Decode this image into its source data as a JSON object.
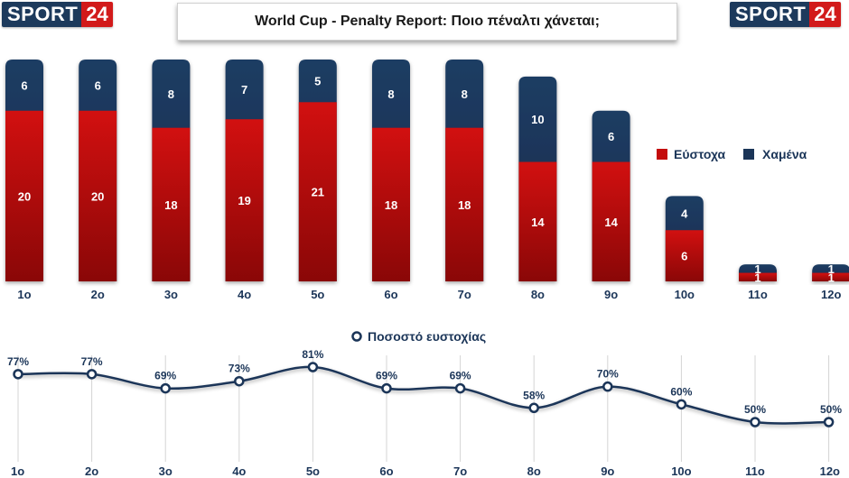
{
  "branding": {
    "logo_word": "SPORT",
    "logo_number": "24"
  },
  "colors": {
    "scored": "#c40c0c",
    "missed": "#1b3558",
    "line": "#1b3558",
    "grid": "#d4d4d4"
  },
  "chart_data": [
    {
      "type": "bar",
      "stacked": true,
      "title": "World Cup - Penalty Report: Ποιο πέναλτι χάνεται;",
      "categories": [
        "1ο",
        "2ο",
        "3ο",
        "4ο",
        "5ο",
        "6ο",
        "7ο",
        "8ο",
        "9ο",
        "10ο",
        "11ο",
        "12ο"
      ],
      "series": [
        {
          "name": "Εύστοχα",
          "values": [
            20,
            20,
            18,
            19,
            21,
            18,
            18,
            14,
            14,
            6,
            1,
            1
          ]
        },
        {
          "name": "Χαμένα",
          "values": [
            6,
            6,
            8,
            7,
            5,
            8,
            8,
            10,
            6,
            4,
            1,
            1
          ]
        }
      ],
      "legend": "right",
      "ylim": [
        0,
        26
      ]
    },
    {
      "type": "line",
      "title": "Ποσοστό ευστοχίας",
      "categories": [
        "1ο",
        "2ο",
        "3ο",
        "4ο",
        "5ο",
        "6ο",
        "7ο",
        "8ο",
        "9ο",
        "10ο",
        "11ο",
        "12ο"
      ],
      "values": [
        77,
        77,
        69,
        73,
        81,
        69,
        69,
        58,
        70,
        60,
        50,
        50
      ],
      "value_suffix": "%",
      "grid": "vertical",
      "ylim": [
        50,
        81
      ]
    }
  ]
}
